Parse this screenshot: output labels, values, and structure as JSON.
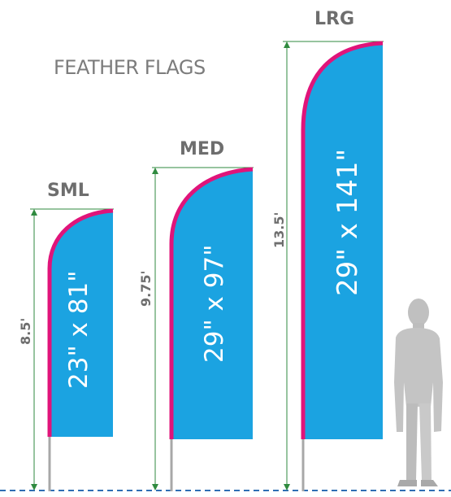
{
  "title": "FEATHER FLAGS",
  "colors": {
    "flag_fill": "#1ba3e1",
    "flag_edge": "#e0147a",
    "measure_line": "#2f8a3f",
    "pole": "#a8a8a8",
    "ground_line": "#2f6fb4",
    "person": "#c6c6c6"
  },
  "flags": [
    {
      "id": "sml",
      "size_label": "SML",
      "height_label": "8.5'",
      "dimensions": "23\" x 81\""
    },
    {
      "id": "med",
      "size_label": "MED",
      "height_label": "9.75'",
      "dimensions": "29\" x 97\""
    },
    {
      "id": "lrg",
      "size_label": "LRG",
      "height_label": "13.5'",
      "dimensions": "29\" x 141\""
    }
  ],
  "person": {
    "icon": "person-silhouette-icon"
  }
}
